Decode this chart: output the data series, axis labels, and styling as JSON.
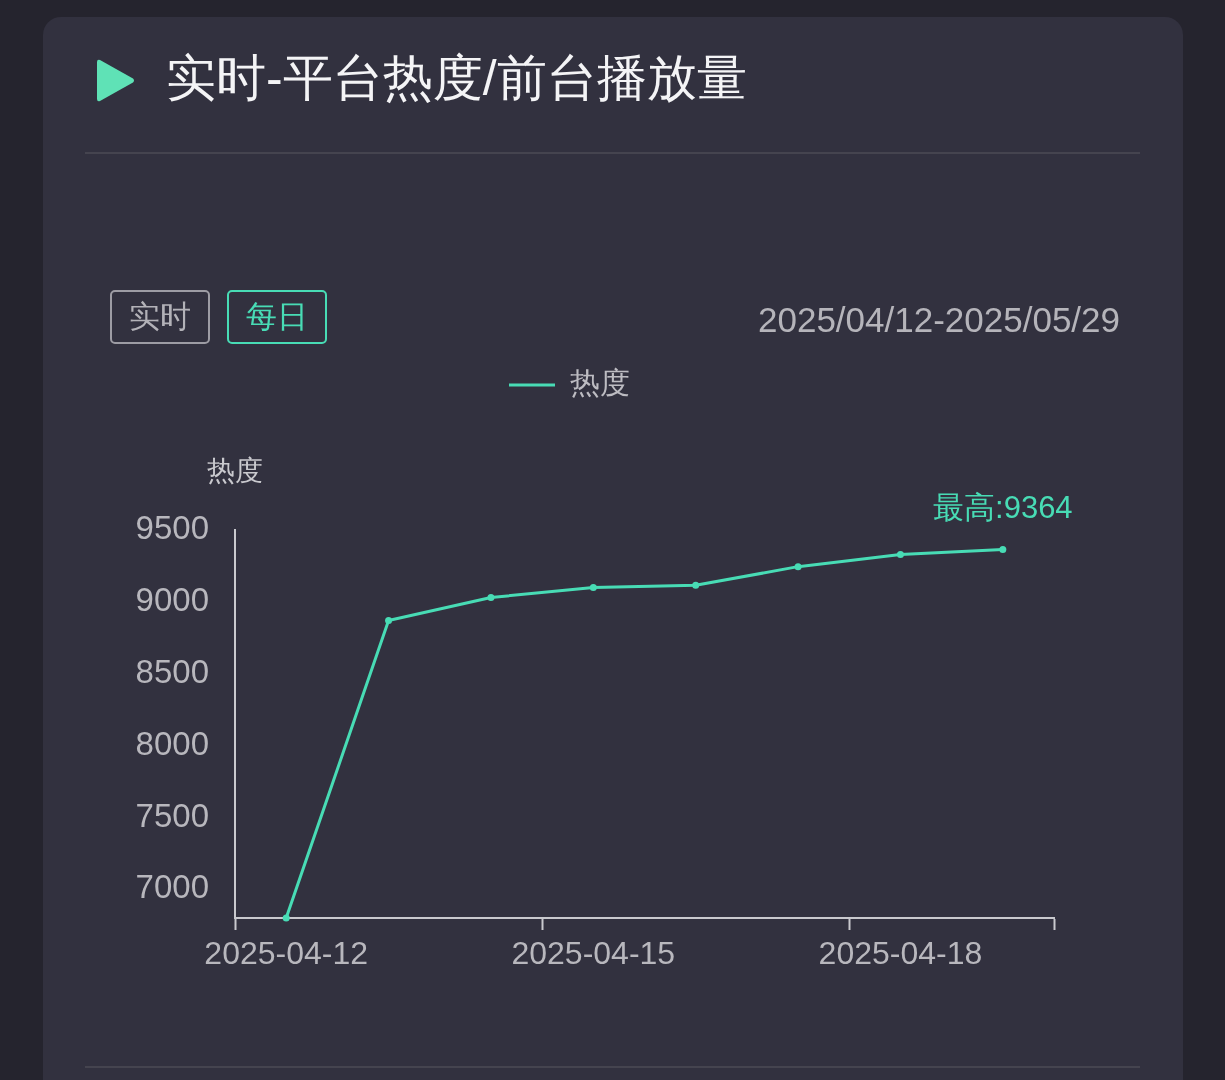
{
  "chart_data": {
    "type": "line",
    "title": "实时-平台热度/前台播放量",
    "ylabel": "热度",
    "categories": [
      "2025-04-12",
      null,
      null,
      "2025-04-15",
      null,
      null,
      "2025-04-18",
      null
    ],
    "series": [
      {
        "name": "热度",
        "color": "#48dcb5",
        "values": [
          6800,
          8870,
          9030,
          9100,
          9115,
          9245,
          9330,
          9364
        ]
      }
    ],
    "ylim": [
      6800,
      9500
    ],
    "yticks": [
      7000,
      7500,
      8000,
      8500,
      9000,
      9500
    ],
    "annotations": [
      "实时",
      "每日",
      "2025/04/12-2025/05/29",
      {
        "text": "最高:9364",
        "y": 9364
      }
    ],
    "legend": "top",
    "marker": "circle",
    "line_style": "solid"
  }
}
